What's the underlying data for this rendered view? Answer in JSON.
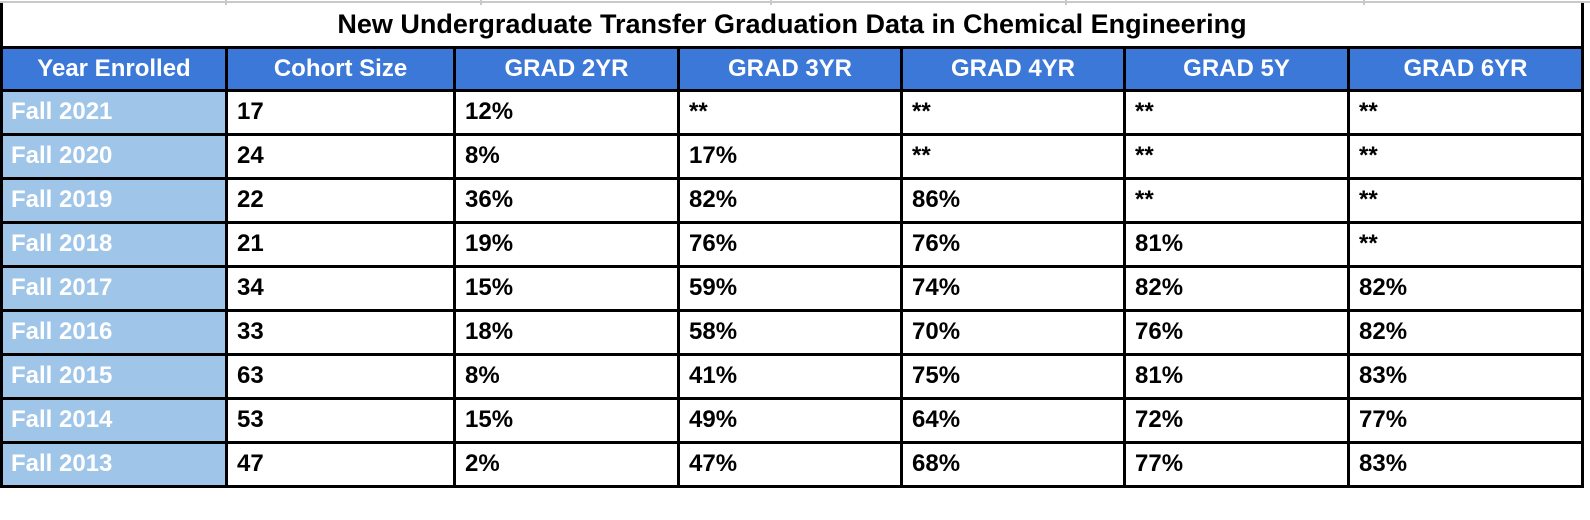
{
  "title": "New Undergraduate Transfer Graduation Data in Chemical Engineering",
  "table": {
    "columns": [
      "Year Enrolled",
      "Cohort Size",
      "GRAD 2YR",
      "GRAD 3YR",
      "GRAD 4YR",
      "GRAD 5Y",
      "GRAD 6YR"
    ],
    "rows": [
      [
        "Fall 2021",
        "17",
        "12%",
        "**",
        "**",
        "**",
        "**"
      ],
      [
        "Fall 2020",
        "24",
        "8%",
        "17%",
        "**",
        "**",
        "**"
      ],
      [
        "Fall 2019",
        "22",
        "36%",
        "82%",
        "86%",
        "**",
        "**"
      ],
      [
        "Fall 2018",
        "21",
        "19%",
        "76%",
        "76%",
        "81%",
        "**"
      ],
      [
        "Fall 2017",
        "34",
        "15%",
        "59%",
        "74%",
        "82%",
        "82%"
      ],
      [
        "Fall 2016",
        "33",
        "18%",
        "58%",
        "70%",
        "76%",
        "82%"
      ],
      [
        "Fall 2015",
        "63",
        "8%",
        "41%",
        "75%",
        "81%",
        "83%"
      ],
      [
        "Fall 2014",
        "53",
        "15%",
        "49%",
        "64%",
        "72%",
        "77%"
      ],
      [
        "Fall 2013",
        "47",
        "2%",
        "47%",
        "68%",
        "77%",
        "83%"
      ]
    ]
  },
  "colors": {
    "header_bg": "#3c78d8",
    "row_label_bg": "#9fc5e8",
    "border": "#000000",
    "gridline": "#c9c9c9"
  }
}
